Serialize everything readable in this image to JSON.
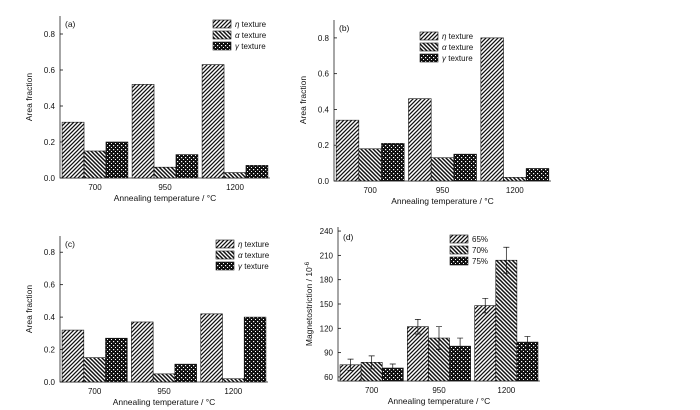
{
  "chart_data": [
    {
      "type": "bar",
      "panel_label": "(a)",
      "categories": [
        "700",
        "950",
        "1200"
      ],
      "series": [
        {
          "name": "η texture",
          "name_symbol": "η",
          "name_rest": " texture",
          "pattern": "diag",
          "values": [
            0.31,
            0.52,
            0.63
          ]
        },
        {
          "name": "α texture",
          "name_symbol": "α",
          "name_rest": " texture",
          "pattern": "cross",
          "values": [
            0.15,
            0.06,
            0.03
          ]
        },
        {
          "name": "γ texture",
          "name_symbol": "γ",
          "name_rest": " texture",
          "pattern": "dots",
          "values": [
            0.2,
            0.13,
            0.07
          ]
        }
      ],
      "xlabel": "Annealing temperature / °C",
      "ylabel": "Area fraction",
      "ylim": [
        0,
        0.9
      ],
      "yticks": [
        "0.0",
        "0.2",
        "0.4",
        "0.6",
        "0.8"
      ],
      "ytick_values": [
        0,
        0.2,
        0.4,
        0.6,
        0.8
      ],
      "legend": "top-right",
      "grid": false
    },
    {
      "type": "bar",
      "panel_label": "(b)",
      "categories": [
        "700",
        "950",
        "1200"
      ],
      "series": [
        {
          "name": "η texture",
          "name_symbol": "η",
          "name_rest": " texture",
          "pattern": "diag",
          "values": [
            0.34,
            0.46,
            0.8
          ]
        },
        {
          "name": "α texture",
          "name_symbol": "α",
          "name_rest": " texture",
          "pattern": "cross",
          "values": [
            0.18,
            0.13,
            0.02
          ]
        },
        {
          "name": "γ texture",
          "name_symbol": "γ",
          "name_rest": " texture",
          "pattern": "dots",
          "values": [
            0.21,
            0.15,
            0.07
          ]
        }
      ],
      "xlabel": "Annealing temperature / °C",
      "ylabel": "Area fraction",
      "ylim": [
        0,
        0.9
      ],
      "yticks": [
        "0.0",
        "0.2",
        "0.4",
        "0.6",
        "0.8"
      ],
      "ytick_values": [
        0,
        0.2,
        0.4,
        0.6,
        0.8
      ],
      "legend": "top-left",
      "grid": false
    },
    {
      "type": "bar",
      "panel_label": "(c)",
      "categories": [
        "700",
        "950",
        "1200"
      ],
      "series": [
        {
          "name": "η texture",
          "name_symbol": "η",
          "name_rest": " texture",
          "pattern": "diag",
          "values": [
            0.32,
            0.37,
            0.42
          ]
        },
        {
          "name": "α texture",
          "name_symbol": "α",
          "name_rest": " texture",
          "pattern": "cross",
          "values": [
            0.15,
            0.05,
            0.02
          ]
        },
        {
          "name": "γ texture",
          "name_symbol": "γ",
          "name_rest": " texture",
          "pattern": "dots",
          "values": [
            0.27,
            0.11,
            0.4
          ]
        }
      ],
      "xlabel": "Annealing temperature / °C",
      "ylabel": "Area fraction",
      "ylim": [
        0,
        0.9
      ],
      "yticks": [
        "0.0",
        "0.2",
        "0.4",
        "0.6",
        "0.8"
      ],
      "ytick_values": [
        0,
        0.2,
        0.4,
        0.6,
        0.8
      ],
      "legend": "top-right",
      "grid": false
    },
    {
      "type": "bar",
      "panel_label": "(d)",
      "categories": [
        "700",
        "950",
        "1200"
      ],
      "series": [
        {
          "name": "65%",
          "pattern": "diag",
          "values": [
            75,
            122,
            148
          ],
          "errors": [
            7,
            9,
            9
          ]
        },
        {
          "name": "70%",
          "pattern": "cross",
          "values": [
            78,
            108,
            204
          ],
          "errors": [
            8,
            14,
            16
          ]
        },
        {
          "name": "75%",
          "pattern": "dots",
          "values": [
            71,
            98,
            103
          ],
          "errors": [
            5,
            10,
            7
          ]
        }
      ],
      "xlabel": "Annealing temperature / °C",
      "ylabel": "Magnetostriction / 10",
      "ylabel_exponent": "-6",
      "ylim": [
        55,
        245
      ],
      "yticks": [
        "60",
        "90",
        "120",
        "150",
        "180",
        "210",
        "240"
      ],
      "ytick_values": [
        60,
        90,
        120,
        150,
        180,
        210,
        240
      ],
      "legend": "top-left",
      "grid": false
    }
  ],
  "colors": {
    "ink": "#111111",
    "background": "#ffffff"
  }
}
